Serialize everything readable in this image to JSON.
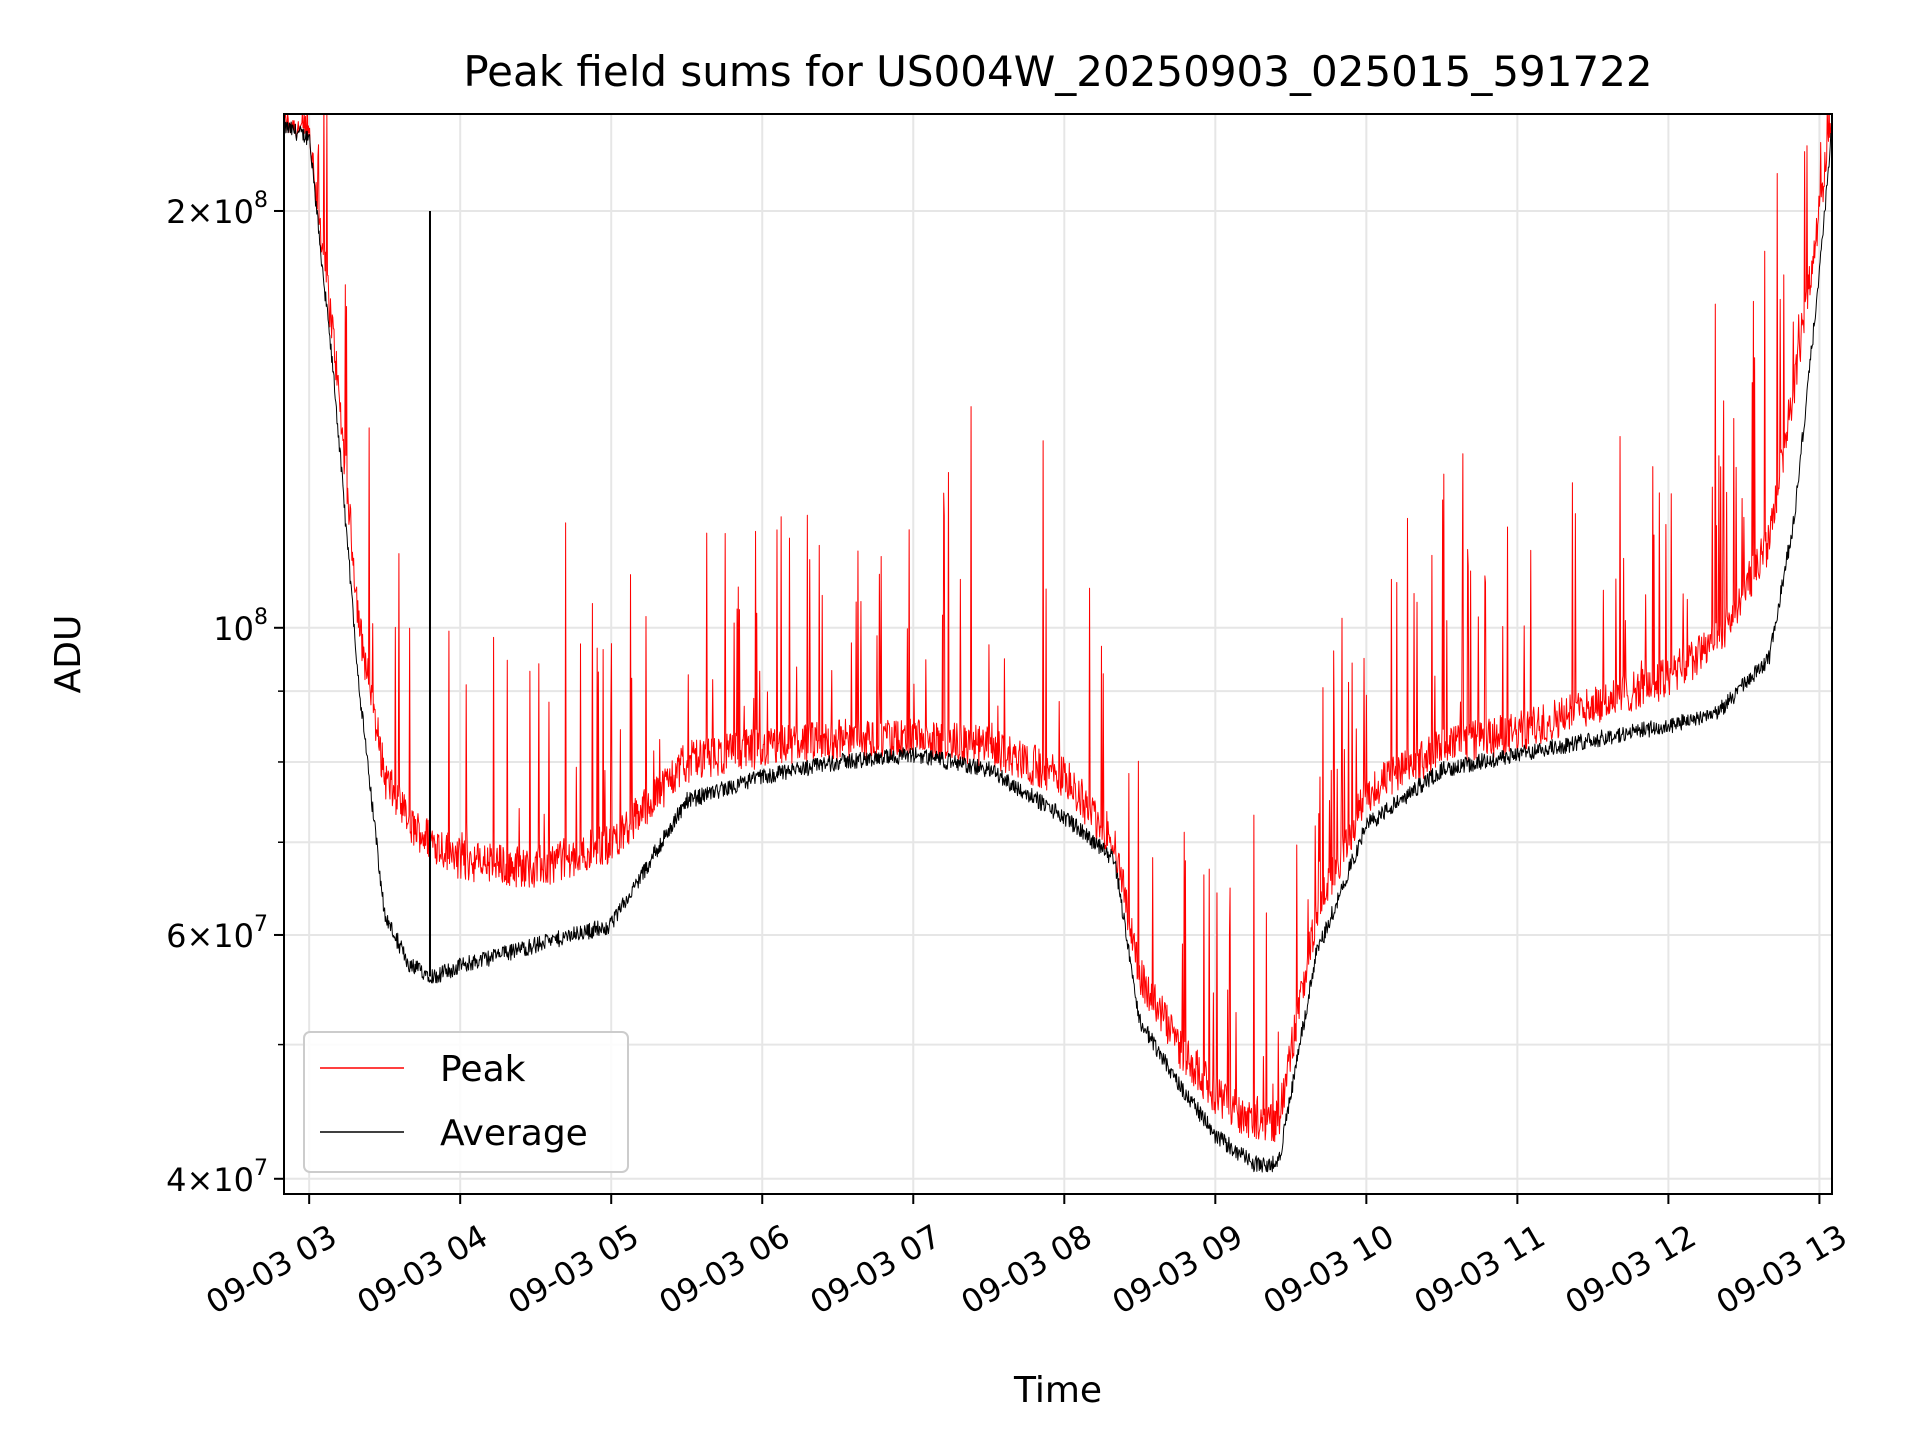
{
  "chart_data": {
    "type": "line",
    "title": "Peak field sums for US004W_20250903_025015_591722",
    "xlabel": "Time",
    "ylabel": "ADU",
    "y_scale": "log",
    "ylim": [
      39000000,
      235000000
    ],
    "xlim": [
      "2025-09-03 02:50",
      "2025-09-03 13:05"
    ],
    "grid": true,
    "legend_position": "lower-left",
    "x_tick_labels": [
      "09-03 03",
      "09-03 04",
      "09-03 05",
      "09-03 06",
      "09-03 07",
      "09-03 08",
      "09-03 09",
      "09-03 10",
      "09-03 11",
      "09-03 12",
      "09-03 13"
    ],
    "y_tick_labels": [
      {
        "value": 40000000,
        "mantissa": "4",
        "exponent": "7"
      },
      {
        "value": 60000000,
        "mantissa": "6",
        "exponent": "7"
      },
      {
        "value": 100000000,
        "mantissa": "",
        "exponent": "8"
      },
      {
        "value": 200000000,
        "mantissa": "2",
        "exponent": "8"
      }
    ],
    "x": [
      "2025-09-03 02:50",
      "2025-09-03 03:00",
      "2025-09-03 03:10",
      "2025-09-03 03:20",
      "2025-09-03 03:30",
      "2025-09-03 03:40",
      "2025-09-03 03:50",
      "2025-09-03 04:00",
      "2025-09-03 04:30",
      "2025-09-03 05:00",
      "2025-09-03 05:30",
      "2025-09-03 06:00",
      "2025-09-03 06:30",
      "2025-09-03 07:00",
      "2025-09-03 07:30",
      "2025-09-03 08:00",
      "2025-09-03 08:20",
      "2025-09-03 08:30",
      "2025-09-03 08:45",
      "2025-09-03 09:00",
      "2025-09-03 09:15",
      "2025-09-03 09:25",
      "2025-09-03 09:40",
      "2025-09-03 10:00",
      "2025-09-03 10:30",
      "2025-09-03 11:00",
      "2025-09-03 11:30",
      "2025-09-03 12:00",
      "2025-09-03 12:20",
      "2025-09-03 12:40",
      "2025-09-03 12:50",
      "2025-09-03 13:00",
      "2025-09-03 13:05"
    ],
    "series": [
      {
        "name": "Peak",
        "color": "#ff0000",
        "values": [
          230000000,
          228000000,
          160000000,
          100000000,
          78000000,
          72000000,
          70000000,
          68000000,
          67000000,
          70000000,
          80000000,
          82000000,
          83000000,
          83000000,
          82000000,
          78000000,
          70000000,
          56000000,
          50000000,
          46000000,
          44000000,
          44000000,
          62000000,
          76000000,
          82000000,
          84000000,
          88000000,
          92000000,
          98000000,
          115000000,
          150000000,
          200000000,
          232000000
        ]
      },
      {
        "name": "Average",
        "color": "#000000",
        "values": [
          230000000,
          226000000,
          150000000,
          90000000,
          62000000,
          57000000,
          56000000,
          57000000,
          59000000,
          61000000,
          75000000,
          78000000,
          80000000,
          81000000,
          79000000,
          73000000,
          68000000,
          52000000,
          47000000,
          43000000,
          41000000,
          41000000,
          58000000,
          72000000,
          79000000,
          81000000,
          83000000,
          85000000,
          87000000,
          95000000,
          120000000,
          180000000,
          230000000
        ]
      }
    ]
  }
}
